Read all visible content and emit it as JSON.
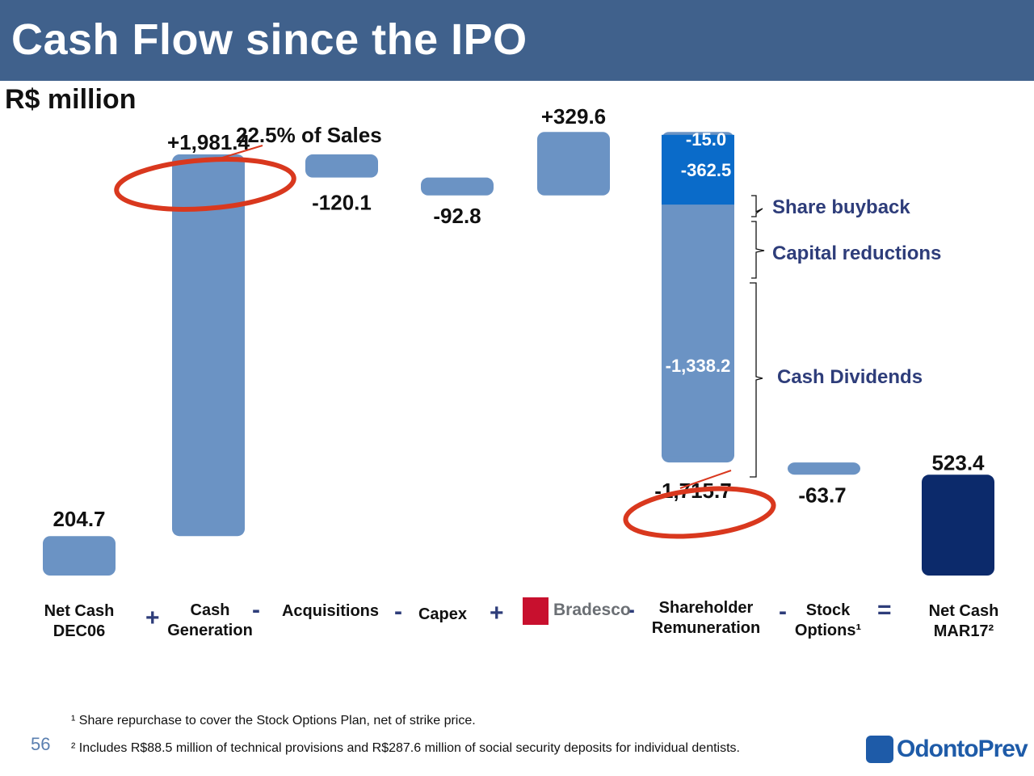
{
  "header": {
    "title": "Cash Flow since the IPO"
  },
  "unit_label": "R$ million",
  "annotation_sales": "22.5% of Sales",
  "colors": {
    "header_bg": "#40618c",
    "bar": "#6b93c4",
    "bar_highlight": "#0a6bc9",
    "bar_final": "#0c2a6b",
    "ellipse": "#d9381e",
    "brace_label": "#2e3d7a"
  },
  "chart_data": {
    "type": "waterfall",
    "title": "Cash Flow since the IPO",
    "ylabel": "R$ million",
    "categories": [
      "Net Cash DEC06",
      "Cash Generation",
      "Acquisitions",
      "Capex",
      "Bradesco",
      "Shareholder Remuneration",
      "Stock Options",
      "Net Cash MAR17"
    ],
    "values": [
      204.7,
      1981.4,
      -120.1,
      -92.8,
      329.6,
      -1715.7,
      -63.7,
      523.4
    ],
    "value_labels": [
      "204.7",
      "+1,981.4",
      "-120.1",
      "-92.8",
      "+329.6",
      "-1,715.7",
      "-63.7",
      "523.4"
    ],
    "shareholder_breakdown": [
      {
        "label": "Share buyback",
        "value": -15.0,
        "value_label": "-15.0"
      },
      {
        "label": "Capital reductions",
        "value": -362.5,
        "value_label": "-362.5"
      },
      {
        "label": "Cash Dividends",
        "value": -1338.2,
        "value_label": "-1,338.2"
      }
    ],
    "ylim": [
      0,
      2400
    ]
  },
  "x_labels": [
    {
      "line1": "Net Cash",
      "line2": "DEC06"
    },
    {
      "line1": "Cash",
      "line2": "Generation"
    },
    {
      "line1": "Acquisitions",
      "line2": ""
    },
    {
      "line1": "Capex",
      "line2": ""
    },
    {
      "line1": "",
      "line2": ""
    },
    {
      "line1": "Shareholder",
      "line2": "Remuneration"
    },
    {
      "line1": "Stock",
      "line2": "Options¹"
    },
    {
      "line1": "Net Cash",
      "line2": "MAR17²"
    }
  ],
  "operators": [
    "+",
    "-",
    "-",
    "+",
    "-",
    "-",
    "="
  ],
  "bradesco_logo": "Bradesco",
  "footnotes": [
    "¹ Share repurchase to cover the Stock Options Plan, net of strike price.",
    "² Includes R$88.5 million of technical provisions and R$287.6 million of social security deposits for individual dentists."
  ],
  "page_number": "56",
  "company_logo": "OdontoPrev"
}
